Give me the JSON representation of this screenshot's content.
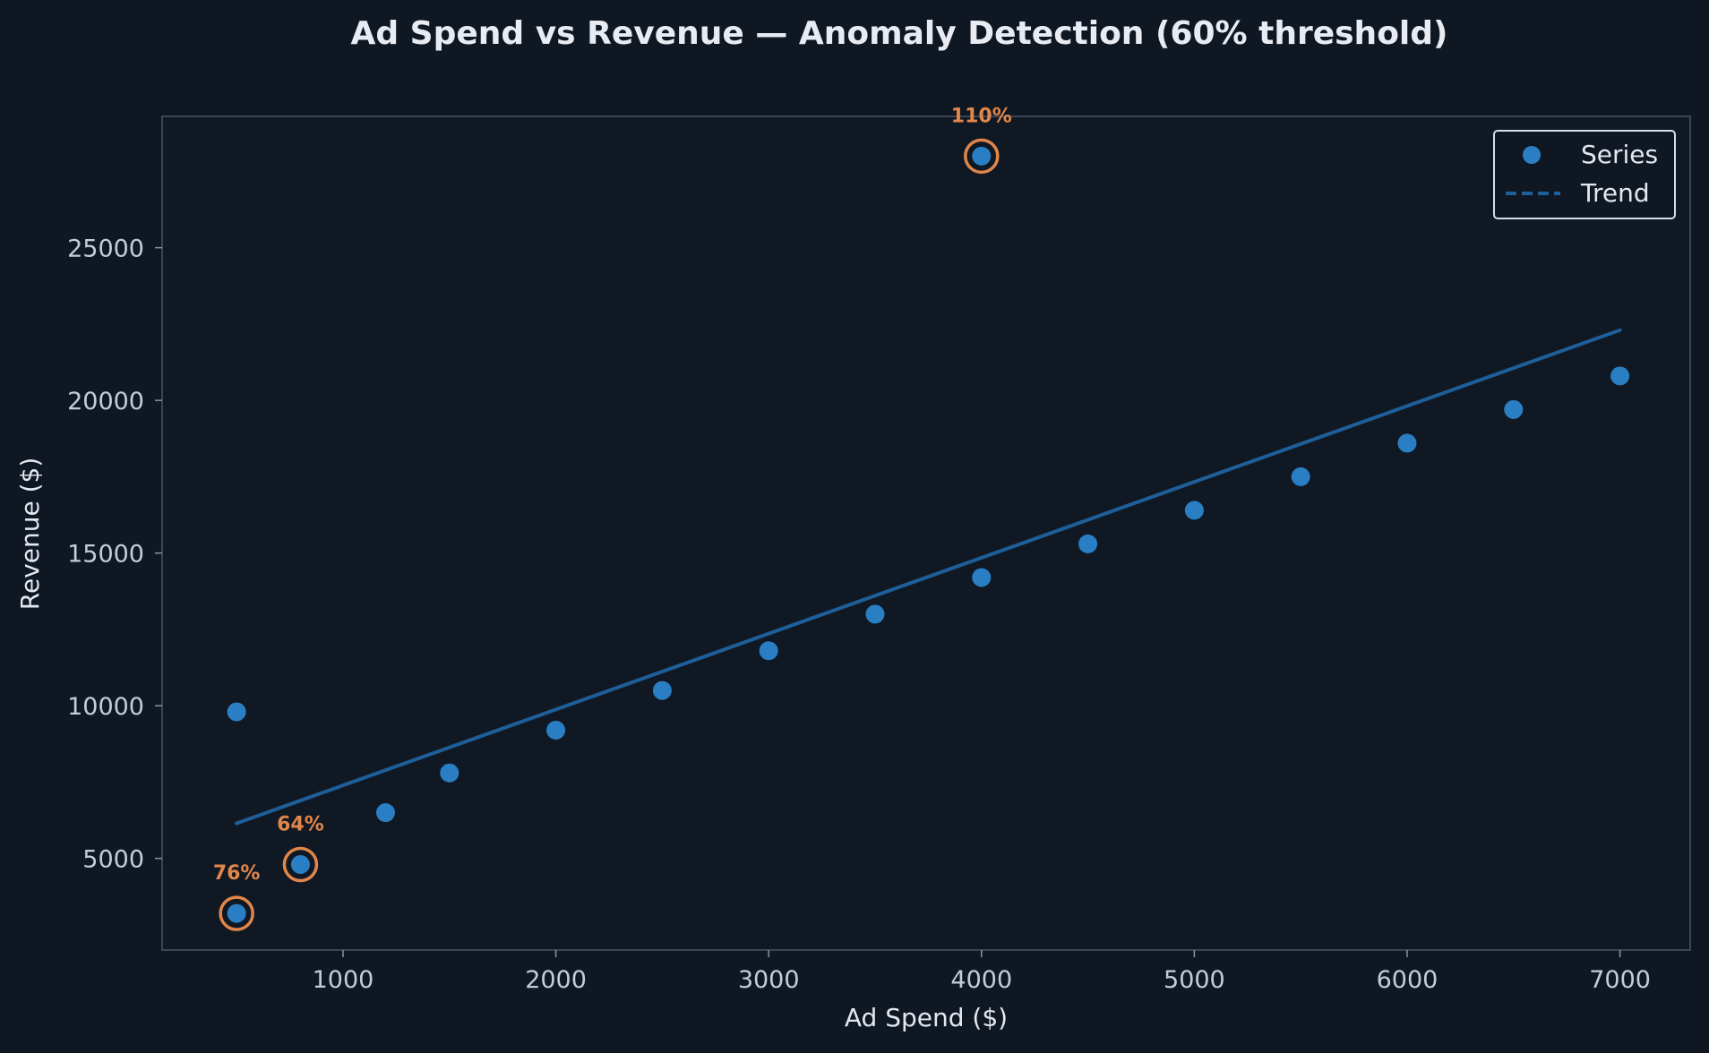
{
  "chart_data": {
    "type": "scatter",
    "title": "Ad Spend vs Revenue — Anomaly Detection (60% threshold)",
    "xlabel": "Ad Spend ($)",
    "ylabel": "Revenue ($)",
    "xlim": [
      150,
      7330
    ],
    "ylim": [
      2000,
      29300
    ],
    "xticks": [
      1000,
      2000,
      3000,
      4000,
      5000,
      6000,
      7000
    ],
    "yticks": [
      5000,
      10000,
      15000,
      20000,
      25000
    ],
    "grid": false,
    "legend_position": "top-right",
    "series": [
      {
        "name": "Series",
        "type": "scatter",
        "color": "#2a7fc4",
        "points": [
          {
            "x": 500,
            "y": 9800
          },
          {
            "x": 500,
            "y": 3200
          },
          {
            "x": 800,
            "y": 4800
          },
          {
            "x": 1200,
            "y": 6500
          },
          {
            "x": 1500,
            "y": 7800
          },
          {
            "x": 2000,
            "y": 9200
          },
          {
            "x": 2500,
            "y": 10500
          },
          {
            "x": 3000,
            "y": 11800
          },
          {
            "x": 3500,
            "y": 13000
          },
          {
            "x": 4000,
            "y": 14200
          },
          {
            "x": 4000,
            "y": 28000
          },
          {
            "x": 4500,
            "y": 15300
          },
          {
            "x": 5000,
            "y": 16400
          },
          {
            "x": 5500,
            "y": 17500
          },
          {
            "x": 6000,
            "y": 18600
          },
          {
            "x": 6500,
            "y": 19700
          },
          {
            "x": 7000,
            "y": 20800
          }
        ]
      },
      {
        "name": "Trend",
        "type": "line",
        "style": "dashed",
        "color": "#1e5f99",
        "points": [
          {
            "x": 500,
            "y": 6150
          },
          {
            "x": 7000,
            "y": 22300
          }
        ]
      }
    ],
    "anomalies": [
      {
        "x": 4000,
        "y": 28000,
        "label": "110%"
      },
      {
        "x": 800,
        "y": 4800,
        "label": "64%"
      },
      {
        "x": 500,
        "y": 3200,
        "label": "76%"
      }
    ],
    "colors": {
      "background": "#0f1723",
      "plot_background": "#101823",
      "spine": "#4a5563",
      "point": "#2a7fc4",
      "trend": "#1e5f99",
      "anomaly": "#e0864a",
      "text": "#c3cdd8"
    }
  }
}
